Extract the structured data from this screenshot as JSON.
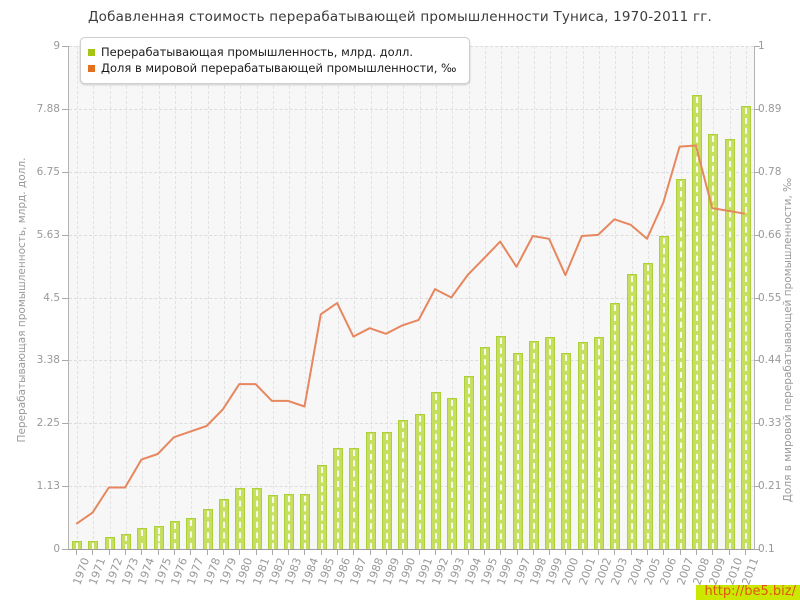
{
  "title": "Добавленная стоимость перерабатывающей промышленности Туниса, 1970-2011 гг.",
  "watermark": {
    "text": "http://be5.biz/"
  },
  "colors": {
    "bar_fill": "#c7df5e",
    "bar_border": "#abd039",
    "bar_stripe": "#ffffff",
    "line": "#e6875f",
    "legend_bar_swatch": "#a6c416",
    "legend_line_swatch": "#e2711f",
    "plot_bg": "#f7f7f7",
    "grid": "#dcdcdc",
    "axis": "#a8a8a8",
    "tick_text": "#999999",
    "title_text": "#3c3c3c",
    "watermark_bg": "#cce800",
    "watermark_text": "#e05510"
  },
  "chart_data": {
    "type": "bar",
    "title": "Добавленная стоимость перерабатывающей промышленности Туниса, 1970-2011 гг.",
    "grid": true,
    "legend_position": "top-left",
    "categories": [
      "1970",
      "1971",
      "1972",
      "1973",
      "1974",
      "1975",
      "1976",
      "1977",
      "1978",
      "1979",
      "1980",
      "1981",
      "1982",
      "1983",
      "1984",
      "1985",
      "1986",
      "1987",
      "1988",
      "1989",
      "1990",
      "1991",
      "1992",
      "1993",
      "1994",
      "1995",
      "1996",
      "1997",
      "1998",
      "1999",
      "2000",
      "2001",
      "2002",
      "2003",
      "2004",
      "2005",
      "2006",
      "2007",
      "2008",
      "2009",
      "2010",
      "2011"
    ],
    "series": [
      {
        "name": "Перерабатывающая промышленность, млрд. долл.",
        "type": "bar",
        "axis": "left",
        "values": [
          0.14,
          0.15,
          0.22,
          0.27,
          0.38,
          0.42,
          0.5,
          0.56,
          0.71,
          0.89,
          1.1,
          1.1,
          0.96,
          0.99,
          0.98,
          1.51,
          1.8,
          1.8,
          2.1,
          2.09,
          2.3,
          2.41,
          2.81,
          2.71,
          3.1,
          3.61,
          3.81,
          3.5,
          3.72,
          3.8,
          3.51,
          3.71,
          3.8,
          4.4,
          4.92,
          5.11,
          5.6,
          6.62,
          8.12,
          7.42,
          7.33,
          7.92
        ]
      },
      {
        "name": "Доля в мировой перерабатывающей промышленности, ‰",
        "type": "line",
        "axis": "right",
        "values": [
          0.145,
          0.165,
          0.21,
          0.21,
          0.26,
          0.27,
          0.3,
          0.31,
          0.32,
          0.35,
          0.395,
          0.395,
          0.365,
          0.365,
          0.355,
          0.52,
          0.54,
          0.48,
          0.495,
          0.485,
          0.5,
          0.51,
          0.565,
          0.55,
          0.59,
          0.62,
          0.65,
          0.605,
          0.66,
          0.655,
          0.59,
          0.66,
          0.662,
          0.69,
          0.68,
          0.655,
          0.72,
          0.82,
          0.822,
          0.71,
          0.705,
          0.7
        ]
      }
    ],
    "left_axis": {
      "label": "Перерабатывающая промышленность, млрд. долл.",
      "range": [
        0,
        9
      ],
      "ticks": [
        "0",
        "1.13",
        "2.25",
        "3.38",
        "4.5",
        "5.63",
        "6.75",
        "7.88",
        "9"
      ]
    },
    "right_axis": {
      "label": "Доля в мировой перерабатывающей промышленности, ‰",
      "range": [
        0.1,
        1
      ],
      "ticks": [
        "0.1",
        "0.21",
        "0.33",
        "0.44",
        "0.55",
        "0.66",
        "0.78",
        "0.89",
        "1"
      ]
    }
  }
}
